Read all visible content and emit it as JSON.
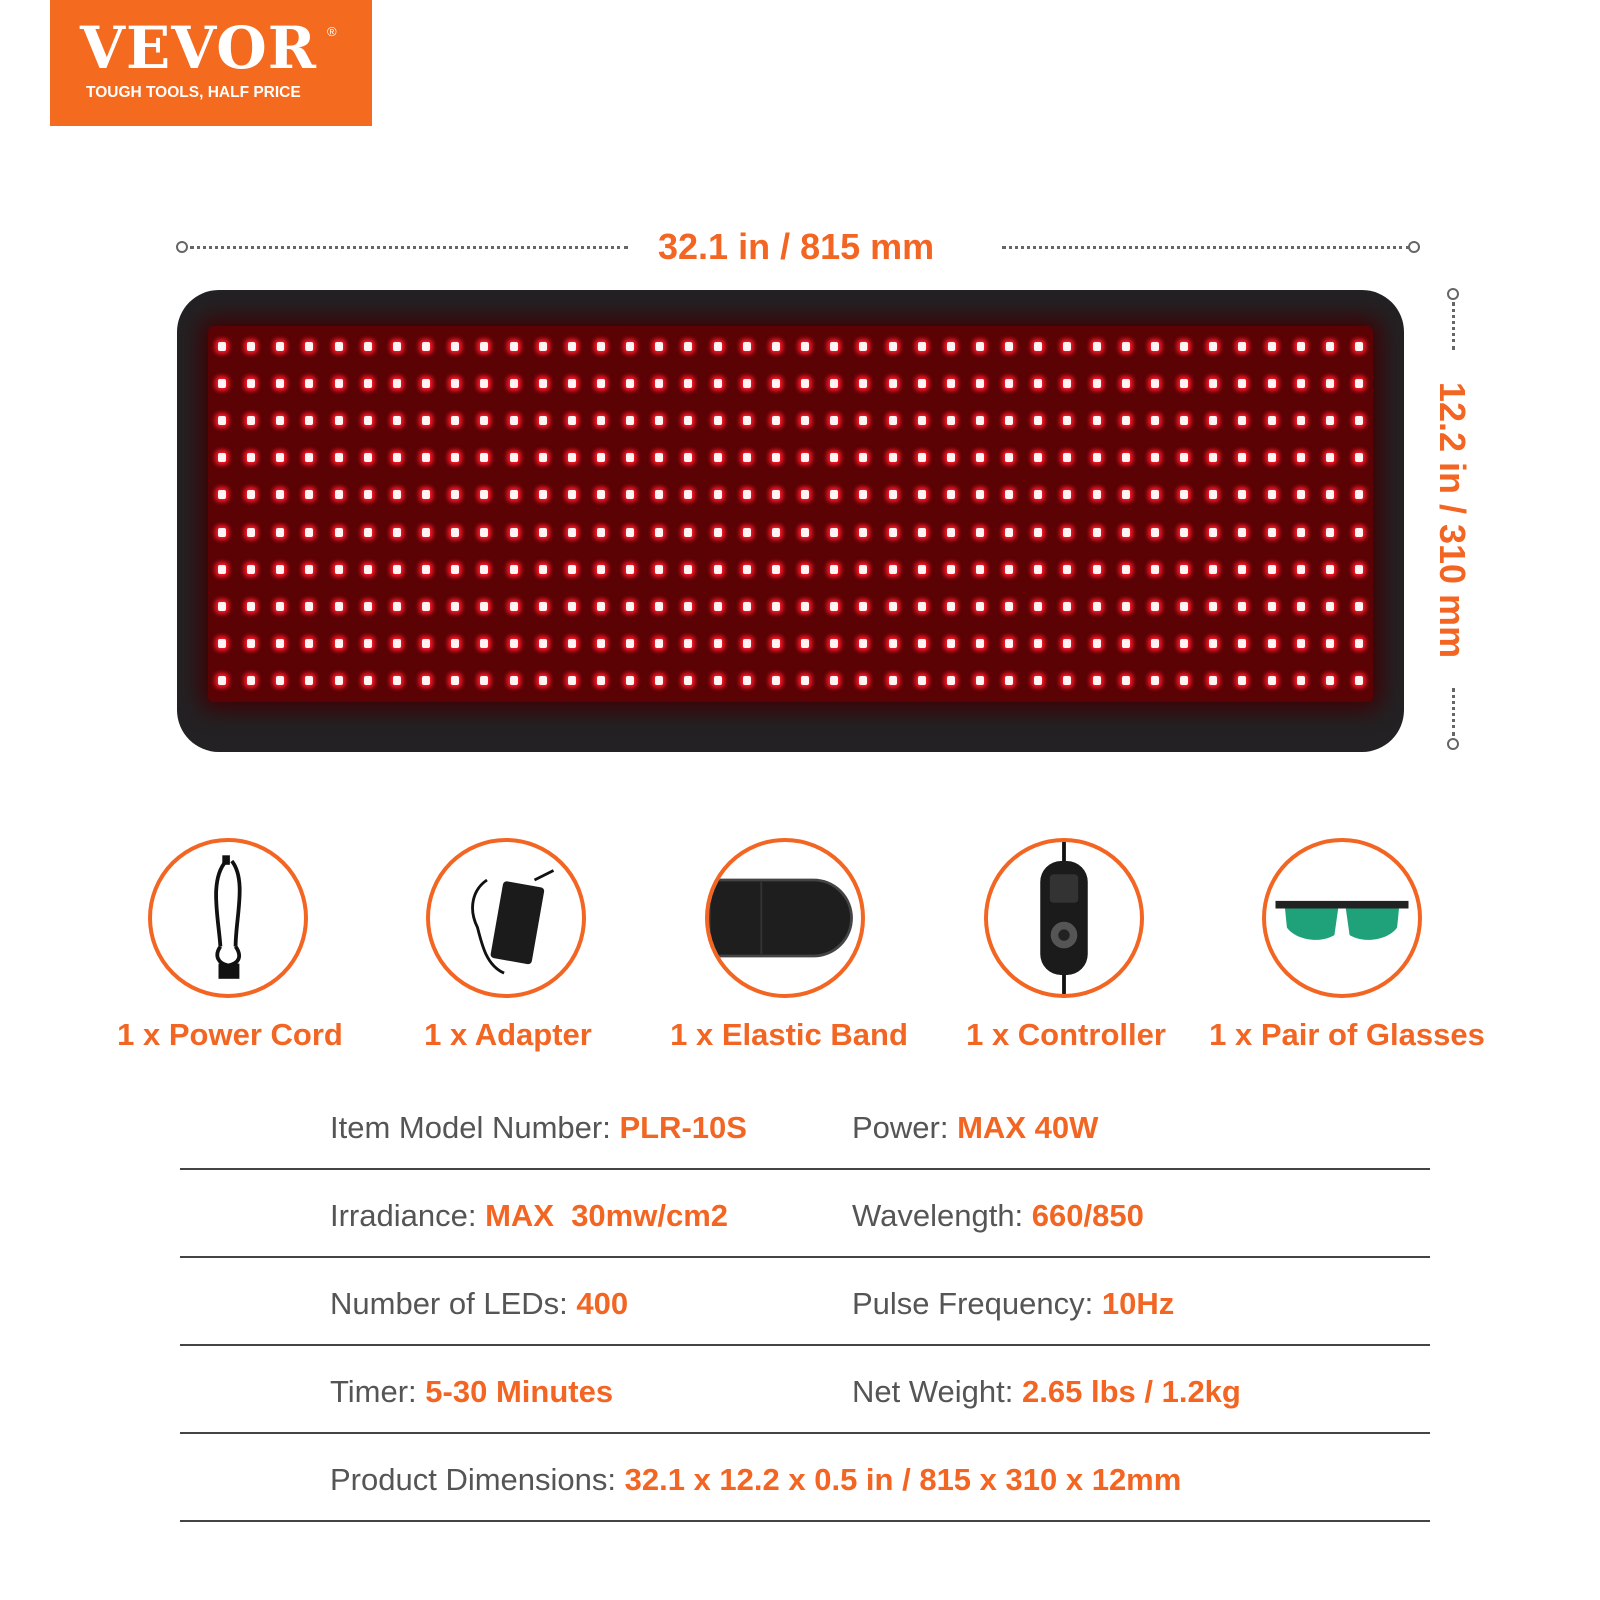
{
  "logo": {
    "brand": "VEVOR",
    "registered": "®",
    "tagline": "TOUGH TOOLS, HALF PRICE"
  },
  "dimensions": {
    "width_label": "32.1 in / 815 mm",
    "height_label": "12.2 in / 310 mm"
  },
  "panel": {
    "led_rows": 10,
    "led_columns": 40,
    "led_color": "#ff1a2a"
  },
  "accessories": [
    {
      "label": "1 x Power Cord",
      "icon": "power-cord-icon"
    },
    {
      "label": "1 x Adapter",
      "icon": "adapter-icon"
    },
    {
      "label": "1 x Elastic Band",
      "icon": "elastic-band-icon"
    },
    {
      "label": "1 x Controller",
      "icon": "controller-icon"
    },
    {
      "label": "1 x Pair of Glasses",
      "icon": "glasses-icon"
    }
  ],
  "specs": [
    [
      {
        "label": "Item Model Number: ",
        "value": "PLR-10S"
      },
      {
        "label": "Power: ",
        "value": "MAX 40W"
      }
    ],
    [
      {
        "label": "Irradiance: ",
        "value": "MAX  30mw/cm2"
      },
      {
        "label": "Wavelength: ",
        "value": "660/850"
      }
    ],
    [
      {
        "label": "Number of LEDs: ",
        "value": "400"
      },
      {
        "label": "Pulse Frequency: ",
        "value": "10Hz"
      }
    ],
    [
      {
        "label": "Timer: ",
        "value": "5-30 Minutes"
      },
      {
        "label": "Net Weight: ",
        "value": "2.65 lbs / 1.2kg"
      }
    ],
    [
      {
        "label": "Product Dimensions: ",
        "value": "32.1 x 12.2 x 0.5 in / 815 x 310 x 12mm"
      }
    ]
  ],
  "colors": {
    "accent": "#f26522",
    "text": "#555555",
    "panel": "#232123"
  }
}
